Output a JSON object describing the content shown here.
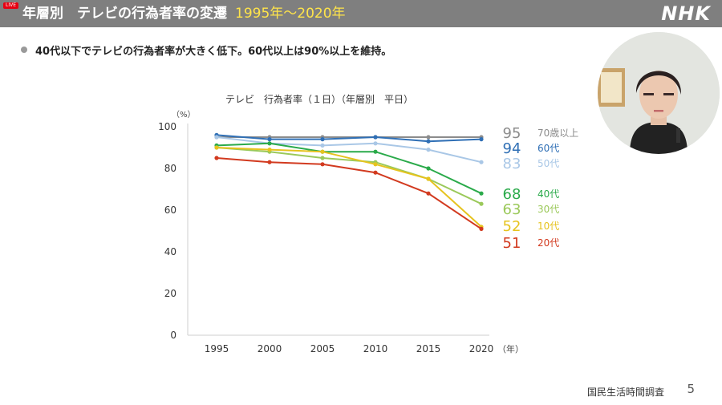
{
  "header": {
    "live_badge": "LIVE",
    "title": "年層別　テレビの行為者率の変遷",
    "years": "1995年～2020年",
    "logo": "NHK"
  },
  "bullet": {
    "text": "40代以下でテレビの行為者率が大きく低下。60代以上は90%以上を維持。"
  },
  "chart_data": {
    "type": "line",
    "title": "テレビ　行為者率（１日）（年層別　平日）",
    "y_unit": "（%）",
    "x_unit": "（年）",
    "categories": [
      "1995",
      "2000",
      "2005",
      "2010",
      "2015",
      "2020"
    ],
    "ylim": [
      0,
      100
    ],
    "yticks": [
      0,
      20,
      40,
      60,
      80,
      100
    ],
    "grid": false,
    "series": [
      {
        "name": "70歳以上",
        "color": "#8c8c8c",
        "values": [
          95,
          95,
          95,
          95,
          95,
          95
        ],
        "end_label": "95"
      },
      {
        "name": "60代",
        "color": "#2f6fb5",
        "values": [
          96,
          94,
          94,
          95,
          93,
          94
        ],
        "end_label": "94"
      },
      {
        "name": "50代",
        "color": "#a9c7e6",
        "values": [
          95,
          92,
          91,
          92,
          89,
          83
        ],
        "end_label": "83"
      },
      {
        "name": "40代",
        "color": "#2aaa4a",
        "values": [
          91,
          92,
          88,
          88,
          80,
          68
        ],
        "end_label": "68"
      },
      {
        "name": "30代",
        "color": "#9bc95a",
        "values": [
          90,
          88,
          85,
          83,
          75,
          63
        ],
        "end_label": "63"
      },
      {
        "name": "10代",
        "color": "#e6c31e",
        "values": [
          90,
          89,
          88,
          82,
          75,
          52
        ],
        "end_label": "52"
      },
      {
        "name": "20代",
        "color": "#d23a1f",
        "values": [
          85,
          83,
          82,
          78,
          68,
          51
        ],
        "end_label": "51"
      }
    ]
  },
  "footer": {
    "source": "国民生活時間調査",
    "page": "5"
  }
}
